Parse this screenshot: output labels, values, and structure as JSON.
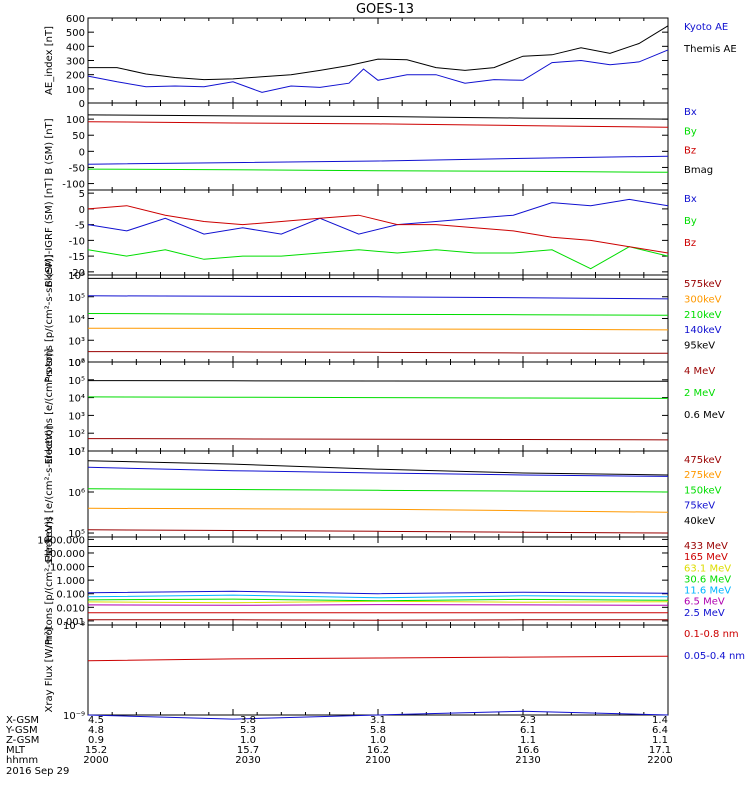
{
  "title": "GOES-13",
  "date_label": "2016 Sep 29",
  "colors": {
    "black": "#000000",
    "blue": "#1010d0",
    "green": "#00dd00",
    "red": "#cc0000",
    "orange": "#ff9900",
    "yellow": "#dddd00",
    "cyan": "#00b4ff",
    "purple": "#b000b0",
    "maroon": "#990000"
  },
  "orbit_table": {
    "row_labels": [
      "X-GSM",
      "Y-GSM",
      "Z-GSM",
      "MLT",
      "hhmm"
    ],
    "columns": [
      [
        "4.5",
        "4.8",
        "0.9",
        "15.2",
        "2000"
      ],
      [
        "3.8",
        "5.3",
        "1.0",
        "15.7",
        "2030"
      ],
      [
        "3.1",
        "5.8",
        "1.0",
        "16.2",
        "2100"
      ],
      [
        "2.3",
        "6.1",
        "1.1",
        "16.6",
        "2130"
      ],
      [
        "1.4",
        "6.4",
        "1.1",
        "17.1",
        "2200"
      ]
    ]
  },
  "chart_data": [
    {
      "type": "line",
      "ylabel": "AE_index [nT]",
      "ylim": [
        0,
        600
      ],
      "log": false,
      "yticks": [
        0,
        100,
        200,
        300,
        400,
        500,
        600
      ],
      "ytick_labels": [
        "0",
        "100",
        "200",
        "300",
        "400",
        "500",
        "600"
      ],
      "series": [
        {
          "name": "Kyoto AE",
          "color": "blue",
          "x": [
            0,
            6,
            12,
            18,
            24,
            30,
            36,
            42,
            48,
            54,
            57,
            60,
            66,
            72,
            78,
            84,
            90,
            96,
            102,
            108,
            114,
            120
          ],
          "y": [
            190,
            150,
            115,
            120,
            115,
            150,
            75,
            120,
            110,
            140,
            240,
            160,
            200,
            200,
            140,
            165,
            160,
            285,
            300,
            270,
            290,
            375
          ]
        },
        {
          "name": "Themis AE",
          "color": "black",
          "x": [
            0,
            6,
            12,
            18,
            24,
            30,
            36,
            42,
            48,
            54,
            60,
            66,
            72,
            78,
            84,
            90,
            96,
            102,
            108,
            114,
            120
          ],
          "y": [
            250,
            250,
            205,
            180,
            165,
            170,
            185,
            200,
            230,
            265,
            310,
            305,
            250,
            230,
            250,
            330,
            340,
            390,
            350,
            420,
            545
          ]
        }
      ]
    },
    {
      "type": "line",
      "ylabel": "B (SM) [nT]",
      "ylim": [
        -120,
        150
      ],
      "log": false,
      "yticks": [
        -100,
        -50,
        0,
        50,
        100
      ],
      "ytick_labels": [
        "-100",
        "-50",
        "0",
        "50",
        "100"
      ],
      "series": [
        {
          "name": "Bx",
          "color": "blue",
          "x": [
            0,
            30,
            60,
            90,
            120
          ],
          "y": [
            -40,
            -35,
            -30,
            -22,
            -15
          ]
        },
        {
          "name": "By",
          "color": "green",
          "x": [
            0,
            30,
            60,
            90,
            120
          ],
          "y": [
            -55,
            -57,
            -60,
            -62,
            -65
          ]
        },
        {
          "name": "Bz",
          "color": "red",
          "x": [
            0,
            30,
            60,
            90,
            120
          ],
          "y": [
            92,
            88,
            85,
            80,
            75
          ]
        },
        {
          "name": "Bmag",
          "color": "black",
          "x": [
            0,
            30,
            60,
            90,
            120
          ],
          "y": [
            113,
            110,
            108,
            103,
            100
          ]
        }
      ]
    },
    {
      "type": "line",
      "ylabel": "B (SM)-IGRF (SM) [nT]",
      "ylim": [
        -21,
        6
      ],
      "log": false,
      "yticks": [
        -20,
        -15,
        -10,
        -5,
        0,
        5
      ],
      "ytick_labels": [
        "-20",
        "-15",
        "-10",
        "-5",
        "0",
        "5"
      ],
      "series": [
        {
          "name": "Bx",
          "color": "blue",
          "x": [
            0,
            8,
            16,
            24,
            32,
            40,
            48,
            56,
            64,
            72,
            80,
            88,
            96,
            104,
            112,
            120
          ],
          "y": [
            -5,
            -7,
            -3,
            -8,
            -6,
            -8,
            -3,
            -8,
            -5,
            -4,
            -3,
            -2,
            2,
            1,
            3,
            1
          ]
        },
        {
          "name": "By",
          "color": "green",
          "x": [
            0,
            8,
            16,
            24,
            32,
            40,
            48,
            56,
            64,
            72,
            80,
            88,
            96,
            104,
            112,
            120
          ],
          "y": [
            -13,
            -15,
            -13,
            -16,
            -15,
            -15,
            -14,
            -13,
            -14,
            -13,
            -14,
            -14,
            -13,
            -19,
            -12,
            -15
          ]
        },
        {
          "name": "Bz",
          "color": "red",
          "x": [
            0,
            8,
            16,
            24,
            32,
            40,
            48,
            56,
            64,
            72,
            80,
            88,
            96,
            104,
            112,
            120
          ],
          "y": [
            0,
            1,
            -2,
            -4,
            -5,
            -4,
            -3,
            -2,
            -5,
            -5,
            -6,
            -7,
            -9,
            -10,
            -12,
            -14
          ]
        }
      ]
    },
    {
      "type": "line",
      "ylabel": "Protons [p/(cm²-s-sr-keV)]",
      "ylim": [
        100,
        1000000
      ],
      "log": true,
      "yticks": [
        100,
        1000,
        10000,
        100000,
        1000000
      ],
      "ytick_labels": [
        "10²",
        "10³",
        "10⁴",
        "10⁵",
        "10⁶"
      ],
      "series": [
        {
          "name": "575keV",
          "color": "maroon",
          "x": [
            0,
            30,
            60,
            90,
            120
          ],
          "y": [
            300,
            290,
            280,
            260,
            250
          ]
        },
        {
          "name": "300keV",
          "color": "orange",
          "x": [
            0,
            30,
            60,
            90,
            120
          ],
          "y": [
            3600,
            3500,
            3300,
            3200,
            3000
          ]
        },
        {
          "name": "210keV",
          "color": "green",
          "x": [
            0,
            30,
            60,
            90,
            120
          ],
          "y": [
            17000,
            16000,
            15500,
            15000,
            14000
          ]
        },
        {
          "name": "140keV",
          "color": "blue",
          "x": [
            0,
            30,
            60,
            90,
            120
          ],
          "y": [
            110000,
            105000,
            100000,
            90000,
            80000
          ]
        },
        {
          "name": "95keV",
          "color": "black",
          "x": [
            0,
            30,
            60,
            90,
            120
          ],
          "y": [
            700000,
            690000,
            680000,
            660000,
            640000
          ]
        }
      ]
    },
    {
      "type": "line",
      "ylabel": "Electrons [e/(cm²-s-sr)]",
      "ylim": [
        10,
        1000000
      ],
      "log": true,
      "yticks": [
        10,
        100,
        1000,
        10000,
        100000,
        1000000
      ],
      "ytick_labels": [
        "10¹",
        "10²",
        "10³",
        "10⁴",
        "10⁵",
        "10⁶"
      ],
      "series": [
        {
          "name": "4 MeV",
          "color": "maroon",
          "x": [
            0,
            30,
            60,
            90,
            120
          ],
          "y": [
            50,
            48,
            46,
            44,
            42
          ]
        },
        {
          "name": "2 MeV",
          "color": "green",
          "x": [
            0,
            30,
            60,
            90,
            120
          ],
          "y": [
            11000,
            10500,
            10000,
            9500,
            9000
          ]
        },
        {
          "name": "0.6 MeV",
          "color": "black",
          "x": [
            0,
            30,
            60,
            90,
            120
          ],
          "y": [
            90000,
            88000,
            86000,
            84000,
            82000
          ]
        }
      ]
    },
    {
      "type": "line",
      "ylabel": "Electrons [e/(cm²-s-sr-keV)]",
      "ylim": [
        80000,
        10000000
      ],
      "log": true,
      "yticks": [
        100000,
        1000000,
        10000000
      ],
      "ytick_labels": [
        "10⁵",
        "10⁶",
        "10⁷"
      ],
      "series": [
        {
          "name": "475keV",
          "color": "maroon",
          "x": [
            0,
            30,
            60,
            90,
            120
          ],
          "y": [
            120000,
            115000,
            110000,
            105000,
            100000
          ]
        },
        {
          "name": "275keV",
          "color": "orange",
          "x": [
            0,
            30,
            60,
            90,
            120
          ],
          "y": [
            400000,
            390000,
            380000,
            350000,
            320000
          ]
        },
        {
          "name": "150keV",
          "color": "green",
          "x": [
            0,
            30,
            60,
            90,
            120
          ],
          "y": [
            1200000,
            1150000,
            1100000,
            1050000,
            1000000
          ]
        },
        {
          "name": "75keV",
          "color": "blue",
          "x": [
            0,
            30,
            60,
            90,
            120
          ],
          "y": [
            4000000,
            3300000,
            2900000,
            2600000,
            2400000
          ]
        },
        {
          "name": "40keV",
          "color": "black",
          "x": [
            0,
            30,
            60,
            90,
            120
          ],
          "y": [
            5800000,
            4800000,
            3600000,
            2900000,
            2600000
          ]
        }
      ]
    },
    {
      "type": "line",
      "ylabel": "Protons [p/(cm²-s-sr-keV)]",
      "ylim": [
        0.0005,
        1500
      ],
      "log": true,
      "yticks": [
        0.001,
        0.01,
        0.1,
        1,
        10,
        100,
        1000
      ],
      "ytick_labels": [
        "0.001",
        "0.010",
        "0.100",
        "1.000",
        "10.000",
        "100.000",
        "1000.000"
      ],
      "series": [
        {
          "name": "433 MeV",
          "color": "maroon",
          "x": [
            0,
            30,
            60,
            90,
            120
          ],
          "y": [
            0.0012,
            0.0012,
            0.0011,
            0.0012,
            0.0012
          ]
        },
        {
          "name": "165 MeV",
          "color": "red",
          "x": [
            0,
            30,
            60,
            90,
            120
          ],
          "y": [
            0.004,
            0.004,
            0.004,
            0.004,
            0.004
          ]
        },
        {
          "name": "63.1 MeV",
          "color": "yellow",
          "x": [
            0,
            30,
            60,
            90,
            120
          ],
          "y": [
            0.025,
            0.022,
            0.028,
            0.024,
            0.026
          ]
        },
        {
          "name": "30.6 MeV",
          "color": "green",
          "x": [
            0,
            30,
            60,
            90,
            120
          ],
          "y": [
            0.035,
            0.04,
            0.03,
            0.038,
            0.033
          ]
        },
        {
          "name": "11.6 MeV",
          "color": "cyan",
          "x": [
            0,
            30,
            60,
            90,
            120
          ],
          "y": [
            0.06,
            0.08,
            0.05,
            0.07,
            0.06
          ]
        },
        {
          "name": "6.5 MeV",
          "color": "purple",
          "x": [
            0,
            30,
            60,
            90,
            120
          ],
          "y": [
            0.015,
            0.014,
            0.016,
            0.015,
            0.014
          ]
        },
        {
          "name": "2.5 MeV",
          "color": "blue",
          "x": [
            0,
            30,
            60,
            90,
            120
          ],
          "y": [
            0.12,
            0.15,
            0.1,
            0.13,
            0.11
          ]
        },
        {
          "name": "",
          "color": "black",
          "x": [
            0,
            30,
            60,
            90,
            120
          ],
          "y": [
            300,
            310,
            290,
            305,
            300
          ]
        }
      ]
    },
    {
      "type": "line",
      "ylabel": "Xray Flux [W/m²]",
      "ylim": [
        1e-09,
        1e-08
      ],
      "log": true,
      "yticks": [
        1e-09,
        1e-08
      ],
      "ytick_labels": [
        "10⁻⁹",
        "10⁻⁸"
      ],
      "series": [
        {
          "name": "0.1-0.8 nm",
          "color": "red",
          "x": [
            0,
            30,
            60,
            90,
            120
          ],
          "y": [
            4e-09,
            4.2e-09,
            4.3e-09,
            4.4e-09,
            4.5e-09
          ]
        },
        {
          "name": "0.05-0.4 nm",
          "color": "blue",
          "x": [
            0,
            30,
            60,
            90,
            120
          ],
          "y": [
            1e-09,
            9e-10,
            1e-09,
            1.1e-09,
            1e-09
          ]
        }
      ]
    }
  ]
}
